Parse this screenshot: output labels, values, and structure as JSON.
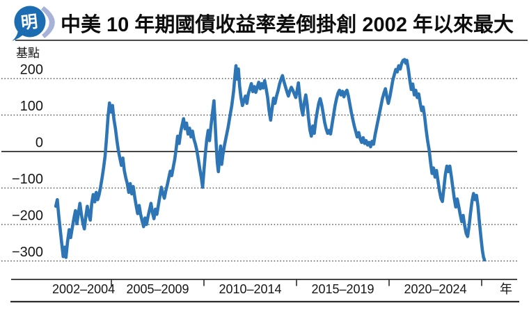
{
  "header": {
    "logo_text": "明",
    "title": "中美 10 年期國債收益率差倒掛創 2002 年以來最大"
  },
  "colors": {
    "line": "#2E75B6",
    "grid_line": "#3F3F3F",
    "axis_line": "#2B2B2B",
    "text": "#161616",
    "logo_blue": "#1B6CB0",
    "logo_swoosh": "#A7B2D8",
    "logo_glyph": "#FFFFFF",
    "background": "#FFFFFF"
  },
  "chart_data": {
    "type": "line",
    "title": "中美 10 年期國債收益率差倒掛創 2002 年以來最大",
    "unit_label": "基點",
    "x_suffix_label": "年",
    "xlabel": "年",
    "ylabel": "基點",
    "y_ticks": [
      200,
      100,
      0,
      -100,
      -200,
      -300
    ],
    "ylim": [
      -350,
      270
    ],
    "xlim": [
      2002,
      2025.2
    ],
    "x_tick_years": [
      2005,
      2010,
      2015,
      2020,
      2025
    ],
    "x_tick_labels": [
      "2002–2004",
      "2005–2009",
      "2010–2014",
      "2015–2019",
      "2020–2024"
    ],
    "grid": "dotted horizontal, solid zero line",
    "legend_position": "none",
    "series": [
      {
        "name": "中美10年期國債收益率差(基點)",
        "points": [
          [
            2002.0,
            -150
          ],
          [
            2002.08,
            -132
          ],
          [
            2002.16,
            -178
          ],
          [
            2002.24,
            -215
          ],
          [
            2002.32,
            -252
          ],
          [
            2002.4,
            -288
          ],
          [
            2002.48,
            -262
          ],
          [
            2002.55,
            -290
          ],
          [
            2002.63,
            -248
          ],
          [
            2002.72,
            -214
          ],
          [
            2002.8,
            -236
          ],
          [
            2002.9,
            -206
          ],
          [
            2002.98,
            -182
          ],
          [
            2003.06,
            -162
          ],
          [
            2003.14,
            -198
          ],
          [
            2003.22,
            -168
          ],
          [
            2003.3,
            -142
          ],
          [
            2003.38,
            -172
          ],
          [
            2003.46,
            -196
          ],
          [
            2003.54,
            -212
          ],
          [
            2003.62,
            -178
          ],
          [
            2003.7,
            -150
          ],
          [
            2003.78,
            -172
          ],
          [
            2003.86,
            -188
          ],
          [
            2003.94,
            -142
          ],
          [
            2004.02,
            -118
          ],
          [
            2004.1,
            -138
          ],
          [
            2004.18,
            -112
          ],
          [
            2004.26,
            -132
          ],
          [
            2004.34,
            -118
          ],
          [
            2004.42,
            -96
          ],
          [
            2004.5,
            -72
          ],
          [
            2004.58,
            -45
          ],
          [
            2004.66,
            -12
          ],
          [
            2004.74,
            38
          ],
          [
            2004.82,
            95
          ],
          [
            2004.9,
            133
          ],
          [
            2004.98,
            108
          ],
          [
            2005.06,
            126
          ],
          [
            2005.14,
            88
          ],
          [
            2005.22,
            62
          ],
          [
            2005.3,
            30
          ],
          [
            2005.38,
            2
          ],
          [
            2005.46,
            -18
          ],
          [
            2005.54,
            -38
          ],
          [
            2005.62,
            -18
          ],
          [
            2005.7,
            -52
          ],
          [
            2005.78,
            -72
          ],
          [
            2005.86,
            -88
          ],
          [
            2005.94,
            -112
          ],
          [
            2006.02,
            -88
          ],
          [
            2006.1,
            -116
          ],
          [
            2006.18,
            -96
          ],
          [
            2006.26,
            -124
          ],
          [
            2006.34,
            -148
          ],
          [
            2006.42,
            -170
          ],
          [
            2006.5,
            -148
          ],
          [
            2006.58,
            -172
          ],
          [
            2006.66,
            -190
          ],
          [
            2006.74,
            -206
          ],
          [
            2006.82,
            -182
          ],
          [
            2006.9,
            -200
          ],
          [
            2006.98,
            -178
          ],
          [
            2007.06,
            -160
          ],
          [
            2007.14,
            -142
          ],
          [
            2007.22,
            -168
          ],
          [
            2007.3,
            -184
          ],
          [
            2007.38,
            -158
          ],
          [
            2007.46,
            -172
          ],
          [
            2007.54,
            -146
          ],
          [
            2007.62,
            -122
          ],
          [
            2007.7,
            -98
          ],
          [
            2007.78,
            -114
          ],
          [
            2007.86,
            -128
          ],
          [
            2007.94,
            -108
          ],
          [
            2008.02,
            -92
          ],
          [
            2008.1,
            -72
          ],
          [
            2008.18,
            -54
          ],
          [
            2008.26,
            -66
          ],
          [
            2008.34,
            -44
          ],
          [
            2008.42,
            -22
          ],
          [
            2008.5,
            8
          ],
          [
            2008.58,
            42
          ],
          [
            2008.66,
            22
          ],
          [
            2008.74,
            52
          ],
          [
            2008.82,
            72
          ],
          [
            2008.9,
            90
          ],
          [
            2008.98,
            62
          ],
          [
            2009.06,
            78
          ],
          [
            2009.14,
            48
          ],
          [
            2009.22,
            64
          ],
          [
            2009.3,
            40
          ],
          [
            2009.38,
            56
          ],
          [
            2009.46,
            34
          ],
          [
            2009.54,
            20
          ],
          [
            2009.62,
            2
          ],
          [
            2009.7,
            -22
          ],
          [
            2009.78,
            -48
          ],
          [
            2009.86,
            -72
          ],
          [
            2009.93,
            -98
          ],
          [
            2010.0,
            -52
          ],
          [
            2010.07,
            -8
          ],
          [
            2010.15,
            32
          ],
          [
            2010.23,
            58
          ],
          [
            2010.3,
            30
          ],
          [
            2010.38,
            70
          ],
          [
            2010.46,
            105
          ],
          [
            2010.54,
            139
          ],
          [
            2010.6,
            80
          ],
          [
            2010.66,
            20
          ],
          [
            2010.72,
            -30
          ],
          [
            2010.78,
            -55
          ],
          [
            2010.84,
            -20
          ],
          [
            2010.9,
            15
          ],
          [
            2010.96,
            -35
          ],
          [
            2011.02,
            -10
          ],
          [
            2011.1,
            15
          ],
          [
            2011.2,
            40
          ],
          [
            2011.3,
            65
          ],
          [
            2011.4,
            95
          ],
          [
            2011.5,
            125
          ],
          [
            2011.6,
            165
          ],
          [
            2011.66,
            200
          ],
          [
            2011.73,
            235
          ],
          [
            2011.79,
            198
          ],
          [
            2011.86,
            226
          ],
          [
            2011.93,
            178
          ],
          [
            2012.0,
            148
          ],
          [
            2012.08,
            126
          ],
          [
            2012.16,
            140
          ],
          [
            2012.24,
            152
          ],
          [
            2012.32,
            132
          ],
          [
            2012.4,
            158
          ],
          [
            2012.48,
            172
          ],
          [
            2012.56,
            186
          ],
          [
            2012.64,
            164
          ],
          [
            2012.72,
            178
          ],
          [
            2012.8,
            162
          ],
          [
            2012.88,
            176
          ],
          [
            2012.96,
            190
          ],
          [
            2013.04,
            172
          ],
          [
            2013.12,
            186
          ],
          [
            2013.2,
            174
          ],
          [
            2013.28,
            194
          ],
          [
            2013.36,
            172
          ],
          [
            2013.44,
            148
          ],
          [
            2013.52,
            112
          ],
          [
            2013.6,
            86
          ],
          [
            2013.68,
            118
          ],
          [
            2013.76,
            146
          ],
          [
            2013.84,
            132
          ],
          [
            2013.92,
            152
          ],
          [
            2014.0,
            166
          ],
          [
            2014.08,
            184
          ],
          [
            2014.16,
            198
          ],
          [
            2014.24,
            208
          ],
          [
            2014.32,
            192
          ],
          [
            2014.4,
            178
          ],
          [
            2014.48,
            164
          ],
          [
            2014.56,
            152
          ],
          [
            2014.64,
            166
          ],
          [
            2014.72,
            176
          ],
          [
            2014.8,
            168
          ],
          [
            2014.88,
            158
          ],
          [
            2014.96,
            148
          ],
          [
            2015.04,
            170
          ],
          [
            2015.1,
            188
          ],
          [
            2015.18,
            150
          ],
          [
            2015.26,
            120
          ],
          [
            2015.34,
            100
          ],
          [
            2015.42,
            135
          ],
          [
            2015.5,
            155
          ],
          [
            2015.58,
            128
          ],
          [
            2015.64,
            95
          ],
          [
            2015.72,
            60
          ],
          [
            2015.8,
            42
          ],
          [
            2015.88,
            70
          ],
          [
            2015.96,
            50
          ],
          [
            2016.04,
            85
          ],
          [
            2016.12,
            110
          ],
          [
            2016.2,
            132
          ],
          [
            2016.28,
            145
          ],
          [
            2016.36,
            128
          ],
          [
            2016.44,
            105
          ],
          [
            2016.52,
            80
          ],
          [
            2016.6,
            62
          ],
          [
            2016.68,
            50
          ],
          [
            2016.76,
            58
          ],
          [
            2016.84,
            48
          ],
          [
            2016.92,
            75
          ],
          [
            2017.0,
            100
          ],
          [
            2017.08,
            125
          ],
          [
            2017.16,
            145
          ],
          [
            2017.24,
            160
          ],
          [
            2017.32,
            168
          ],
          [
            2017.4,
            155
          ],
          [
            2017.48,
            165
          ],
          [
            2017.56,
            150
          ],
          [
            2017.64,
            162
          ],
          [
            2017.72,
            168
          ],
          [
            2017.8,
            152
          ],
          [
            2017.88,
            130
          ],
          [
            2017.96,
            108
          ],
          [
            2018.04,
            88
          ],
          [
            2018.12,
            70
          ],
          [
            2018.2,
            55
          ],
          [
            2018.28,
            40
          ],
          [
            2018.36,
            52
          ],
          [
            2018.44,
            35
          ],
          [
            2018.52,
            25
          ],
          [
            2018.6,
            38
          ],
          [
            2018.68,
            22
          ],
          [
            2018.76,
            30
          ],
          [
            2018.84,
            18
          ],
          [
            2018.92,
            25
          ],
          [
            2019.0,
            13
          ],
          [
            2019.08,
            28
          ],
          [
            2019.16,
            20
          ],
          [
            2019.24,
            45
          ],
          [
            2019.32,
            65
          ],
          [
            2019.4,
            85
          ],
          [
            2019.48,
            105
          ],
          [
            2019.56,
            125
          ],
          [
            2019.64,
            145
          ],
          [
            2019.72,
            160
          ],
          [
            2019.8,
            172
          ],
          [
            2019.88,
            150
          ],
          [
            2019.96,
            132
          ],
          [
            2020.04,
            150
          ],
          [
            2020.12,
            172
          ],
          [
            2020.2,
            195
          ],
          [
            2020.28,
            210
          ],
          [
            2020.36,
            225
          ],
          [
            2020.44,
            218
          ],
          [
            2020.52,
            235
          ],
          [
            2020.6,
            226
          ],
          [
            2020.68,
            242
          ],
          [
            2020.76,
            250
          ],
          [
            2020.84,
            252
          ],
          [
            2020.9,
            242
          ],
          [
            2020.96,
            250
          ],
          [
            2021.04,
            225
          ],
          [
            2021.12,
            195
          ],
          [
            2021.2,
            170
          ],
          [
            2021.28,
            185
          ],
          [
            2021.36,
            155
          ],
          [
            2021.44,
            168
          ],
          [
            2021.52,
            148
          ],
          [
            2021.6,
            158
          ],
          [
            2021.68,
            132
          ],
          [
            2021.76,
            112
          ],
          [
            2021.84,
            122
          ],
          [
            2021.92,
            95
          ],
          [
            2022.0,
            60
          ],
          [
            2022.08,
            30
          ],
          [
            2022.16,
            5
          ],
          [
            2022.24,
            -30
          ],
          [
            2022.32,
            -60
          ],
          [
            2022.4,
            -45
          ],
          [
            2022.48,
            -70
          ],
          [
            2022.56,
            -52
          ],
          [
            2022.64,
            -80
          ],
          [
            2022.72,
            -108
          ],
          [
            2022.8,
            -128
          ],
          [
            2022.88,
            -137
          ],
          [
            2022.96,
            -100
          ],
          [
            2023.04,
            -62
          ],
          [
            2023.12,
            -40
          ],
          [
            2023.2,
            -55
          ],
          [
            2023.28,
            -40
          ],
          [
            2023.36,
            -68
          ],
          [
            2023.44,
            -98
          ],
          [
            2023.52,
            -128
          ],
          [
            2023.6,
            -152
          ],
          [
            2023.68,
            -130
          ],
          [
            2023.76,
            -150
          ],
          [
            2023.84,
            -172
          ],
          [
            2023.92,
            -192
          ],
          [
            2024.0,
            -175
          ],
          [
            2024.08,
            -202
          ],
          [
            2024.16,
            -224
          ],
          [
            2024.24,
            -233
          ],
          [
            2024.32,
            -205
          ],
          [
            2024.4,
            -168
          ],
          [
            2024.48,
            -135
          ],
          [
            2024.56,
            -115
          ],
          [
            2024.64,
            -132
          ],
          [
            2024.72,
            -120
          ],
          [
            2024.8,
            -150
          ],
          [
            2024.86,
            -185
          ],
          [
            2024.92,
            -215
          ],
          [
            2024.98,
            -245
          ],
          [
            2025.04,
            -272
          ],
          [
            2025.1,
            -290
          ],
          [
            2025.15,
            -297
          ]
        ]
      }
    ]
  }
}
